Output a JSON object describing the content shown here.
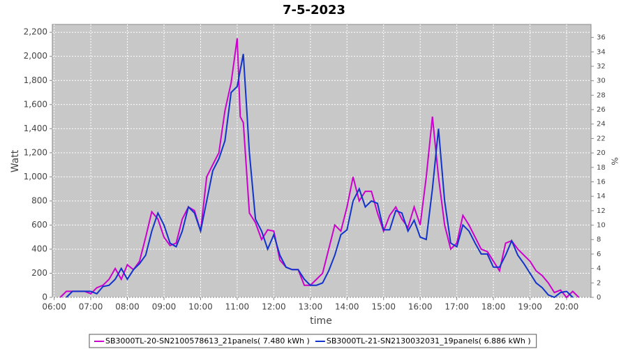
{
  "chart_data": {
    "type": "line",
    "title": "7-5-2023",
    "x_label": "time",
    "y_label": "Watt",
    "y2_label": "%",
    "xlim": [
      "05:57",
      "20:40"
    ],
    "xticks": [
      "06:00",
      "07:00",
      "08:00",
      "09:00",
      "10:00",
      "11:00",
      "12:00",
      "13:00",
      "14:00",
      "15:00",
      "16:00",
      "17:00",
      "18:00",
      "19:00",
      "20:00"
    ],
    "ylim": [
      0,
      2265
    ],
    "yticks": [
      0,
      200,
      400,
      600,
      800,
      {
        "value": 1000,
        "label": "1,000"
      },
      {
        "value": 1200,
        "label": "1,200"
      },
      {
        "value": 1400,
        "label": "1,400"
      },
      {
        "value": 1600,
        "label": "1,600"
      },
      {
        "value": 1800,
        "label": "1,800"
      },
      {
        "value": 2000,
        "label": "2,000"
      },
      {
        "value": 2200,
        "label": "2,200"
      }
    ],
    "y2lim": [
      0,
      37.8
    ],
    "y2ticks": [
      0,
      2,
      4,
      6,
      8,
      10,
      12,
      14,
      16,
      18,
      20,
      22,
      24,
      26,
      28,
      30,
      32,
      34,
      36
    ],
    "grid": true,
    "legend": "bottom",
    "series": [
      {
        "name": "SB3000TL-20-SN2100578613_21panels( 7.480 kWh )",
        "color": "#cc00cc",
        "x": [
          "06:10",
          "06:20",
          "06:30",
          "06:40",
          "06:50",
          "07:00",
          "07:10",
          "07:20",
          "07:30",
          "07:40",
          "07:50",
          "08:00",
          "08:10",
          "08:20",
          "08:30",
          "08:40",
          "08:50",
          "09:00",
          "09:10",
          "09:20",
          "09:30",
          "09:40",
          "09:50",
          "10:00",
          "10:10",
          "10:20",
          "10:30",
          "10:40",
          "10:50",
          "11:00",
          "11:05",
          "11:10",
          "11:20",
          "11:30",
          "11:40",
          "11:50",
          "12:00",
          "12:10",
          "12:20",
          "12:30",
          "12:40",
          "12:50",
          "13:00",
          "13:10",
          "13:20",
          "13:30",
          "13:40",
          "13:50",
          "14:00",
          "14:10",
          "14:20",
          "14:30",
          "14:40",
          "14:50",
          "15:00",
          "15:10",
          "15:20",
          "15:30",
          "15:40",
          "15:50",
          "16:00",
          "16:10",
          "16:20",
          "16:30",
          "16:40",
          "16:50",
          "17:00",
          "17:10",
          "17:20",
          "17:30",
          "17:40",
          "17:50",
          "18:00",
          "18:10",
          "18:20",
          "18:30",
          "18:40",
          "18:50",
          "19:00",
          "19:10",
          "19:20",
          "19:30",
          "19:40",
          "19:50",
          "20:00",
          "20:10",
          "20:20"
        ],
        "values": [
          0,
          50,
          50,
          50,
          50,
          30,
          80,
          100,
          150,
          240,
          150,
          270,
          230,
          300,
          500,
          710,
          650,
          500,
          430,
          450,
          650,
          750,
          720,
          550,
          1000,
          1100,
          1200,
          1550,
          1780,
          2150,
          1500,
          1450,
          700,
          620,
          480,
          560,
          550,
          310,
          250,
          230,
          230,
          100,
          100,
          150,
          200,
          400,
          600,
          550,
          750,
          1000,
          800,
          880,
          880,
          700,
          550,
          680,
          750,
          650,
          580,
          750,
          600,
          1000,
          1500,
          1000,
          600,
          400,
          450,
          680,
          600,
          500,
          400,
          380,
          300,
          220,
          450,
          470,
          400,
          350,
          300,
          220,
          180,
          120,
          40,
          60,
          0,
          50,
          0
        ]
      },
      {
        "name": "SB3000TL-21-SN2130032031_19panels( 6.886 kWh )",
        "color": "#1133cc",
        "x": [
          "06:20",
          "06:30",
          "06:40",
          "06:50",
          "07:00",
          "07:10",
          "07:20",
          "07:30",
          "07:40",
          "07:50",
          "08:00",
          "08:10",
          "08:20",
          "08:30",
          "08:40",
          "08:50",
          "09:00",
          "09:10",
          "09:20",
          "09:30",
          "09:40",
          "09:50",
          "10:00",
          "10:10",
          "10:20",
          "10:30",
          "10:40",
          "10:50",
          "11:00",
          "11:10",
          "11:20",
          "11:30",
          "11:40",
          "11:50",
          "12:00",
          "12:10",
          "12:20",
          "12:30",
          "12:40",
          "12:50",
          "13:00",
          "13:10",
          "13:20",
          "13:30",
          "13:40",
          "13:50",
          "14:00",
          "14:10",
          "14:20",
          "14:30",
          "14:40",
          "14:50",
          "15:00",
          "15:10",
          "15:20",
          "15:30",
          "15:40",
          "15:50",
          "16:00",
          "16:10",
          "16:20",
          "16:30",
          "16:40",
          "16:50",
          "17:00",
          "17:10",
          "17:20",
          "17:30",
          "17:40",
          "17:50",
          "18:00",
          "18:10",
          "18:20",
          "18:30",
          "18:40",
          "18:50",
          "19:00",
          "19:10",
          "19:20",
          "19:30",
          "19:40",
          "19:50",
          "20:00",
          "20:10"
        ],
        "values": [
          0,
          50,
          50,
          50,
          50,
          30,
          90,
          100,
          150,
          240,
          150,
          230,
          280,
          350,
          550,
          700,
          600,
          450,
          420,
          550,
          750,
          700,
          550,
          800,
          1050,
          1150,
          1300,
          1700,
          1750,
          2020,
          1200,
          650,
          550,
          400,
          520,
          350,
          250,
          230,
          230,
          150,
          100,
          100,
          120,
          220,
          350,
          520,
          560,
          800,
          900,
          750,
          800,
          780,
          560,
          560,
          720,
          700,
          550,
          640,
          500,
          480,
          900,
          1400,
          800,
          450,
          420,
          600,
          550,
          450,
          360,
          360,
          250,
          250,
          350,
          470,
          350,
          280,
          200,
          120,
          80,
          20,
          0,
          40,
          50,
          0
        ]
      }
    ]
  }
}
